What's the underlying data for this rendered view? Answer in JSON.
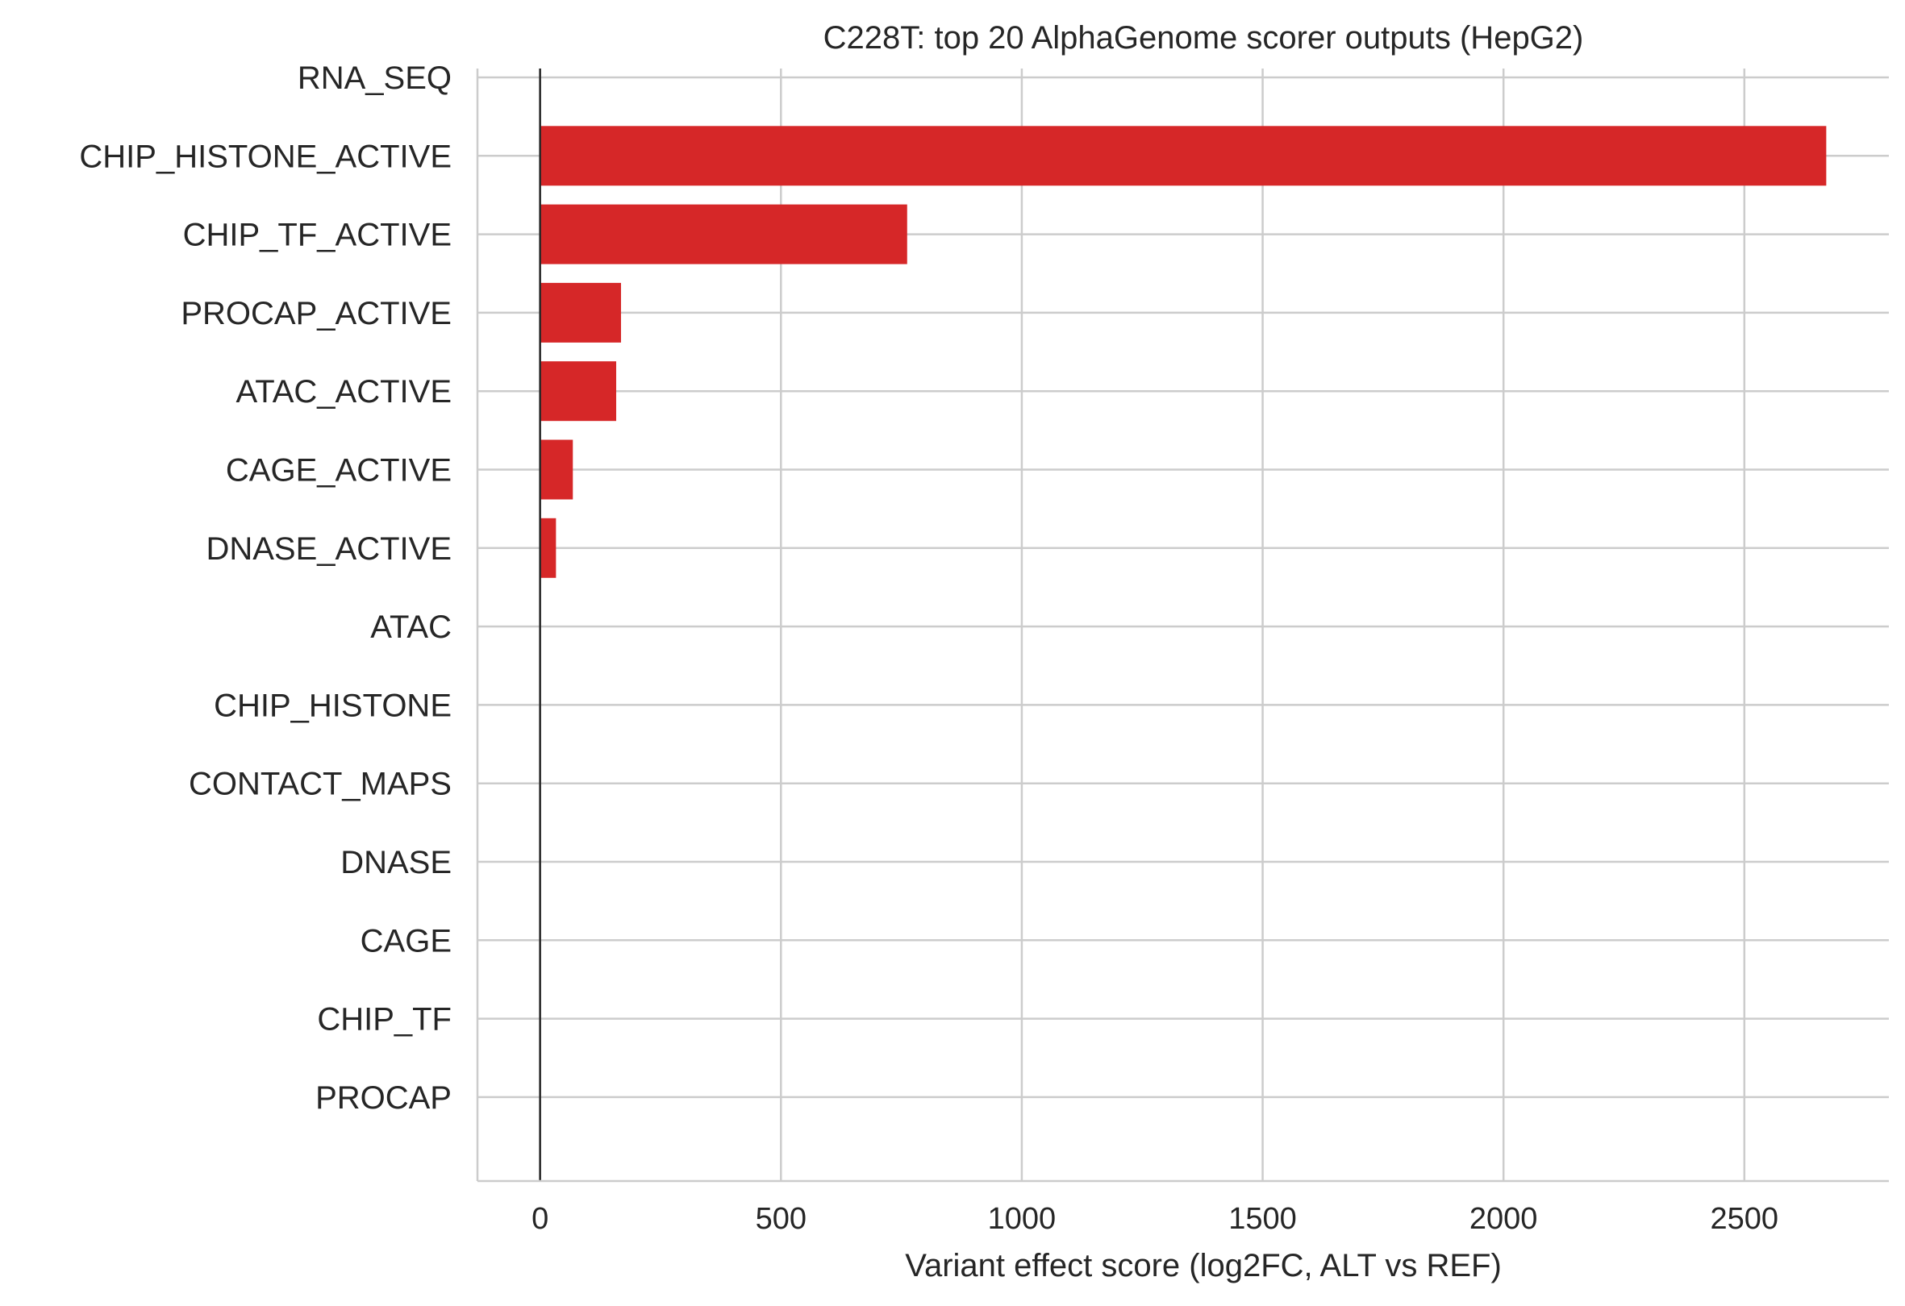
{
  "chart_data": {
    "type": "bar",
    "orientation": "horizontal",
    "title": "C228T: top 20 AlphaGenome scorer outputs (HepG2)",
    "xlabel": "Variant effect score (log2FC, ALT vs REF)",
    "ylabel": "",
    "categories": [
      "RNA_SEQ",
      "CHIP_HISTONE_ACTIVE",
      "CHIP_TF_ACTIVE",
      "PROCAP_ACTIVE",
      "ATAC_ACTIVE",
      "CAGE_ACTIVE",
      "DNASE_ACTIVE",
      "ATAC",
      "CHIP_HISTONE",
      "CONTACT_MAPS",
      "DNASE",
      "CAGE",
      "CHIP_TF",
      "PROCAP"
    ],
    "values": [
      0,
      2670,
      762,
      168,
      158,
      68,
      33,
      0,
      0,
      0,
      0,
      0,
      0,
      0
    ],
    "xlim": [
      -130,
      2800
    ],
    "xticks": [
      0,
      500,
      1000,
      1500,
      2000,
      2500
    ],
    "xtick_labels": [
      "0",
      "500",
      "1000",
      "1500",
      "2000",
      "2500"
    ],
    "bar_color": "#d62728",
    "grid": true,
    "zero_line": true,
    "legend": "none"
  }
}
